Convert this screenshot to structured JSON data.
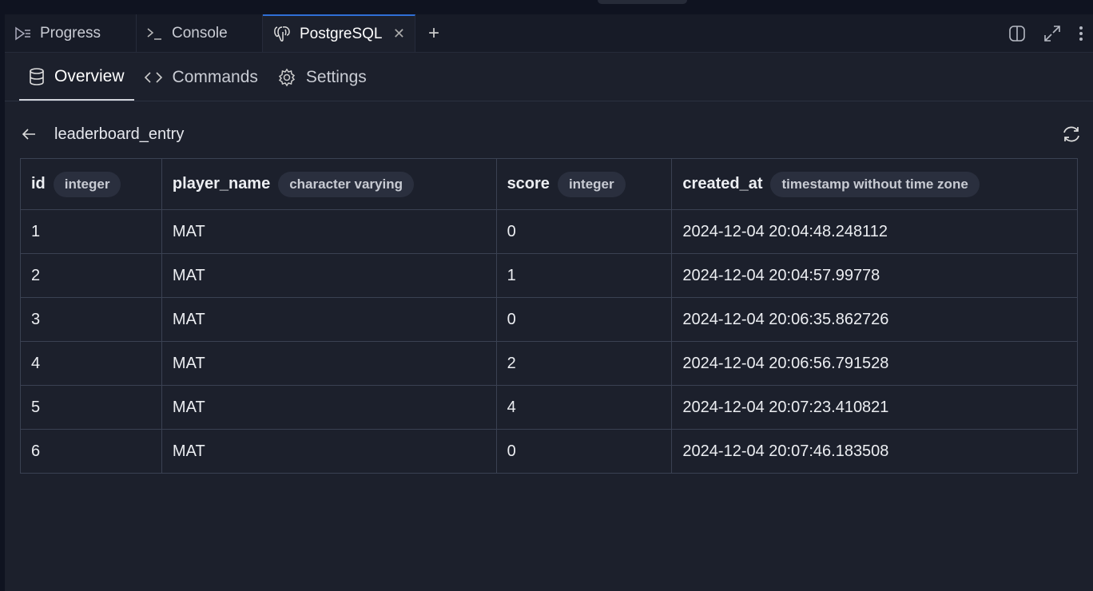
{
  "tabs": [
    {
      "label": "Progress",
      "icon": "progress-icon"
    },
    {
      "label": "Console",
      "icon": "terminal-icon"
    },
    {
      "label": "PostgreSQL",
      "icon": "postgresql-elephant-icon",
      "active": true
    }
  ],
  "subtabs": [
    {
      "label": "Overview",
      "icon": "database-icon",
      "active": true
    },
    {
      "label": "Commands",
      "icon": "code-icon"
    },
    {
      "label": "Settings",
      "icon": "gear-icon"
    }
  ],
  "table_name": "leaderboard_entry",
  "columns": [
    {
      "name": "id",
      "type": "integer"
    },
    {
      "name": "player_name",
      "type": "character varying"
    },
    {
      "name": "score",
      "type": "integer"
    },
    {
      "name": "created_at",
      "type": "timestamp without time zone"
    }
  ],
  "rows": [
    [
      "1",
      "MAT",
      "0",
      "2024-12-04 20:04:48.248112"
    ],
    [
      "2",
      "MAT",
      "1",
      "2024-12-04 20:04:57.99778"
    ],
    [
      "3",
      "MAT",
      "0",
      "2024-12-04 20:06:35.862726"
    ],
    [
      "4",
      "MAT",
      "2",
      "2024-12-04 20:06:56.791528"
    ],
    [
      "5",
      "MAT",
      "4",
      "2024-12-04 20:07:23.410821"
    ],
    [
      "6",
      "MAT",
      "0",
      "2024-12-04 20:07:46.183508"
    ]
  ],
  "colors": {
    "accent": "#2f6fd6",
    "background": "#1c202c"
  }
}
